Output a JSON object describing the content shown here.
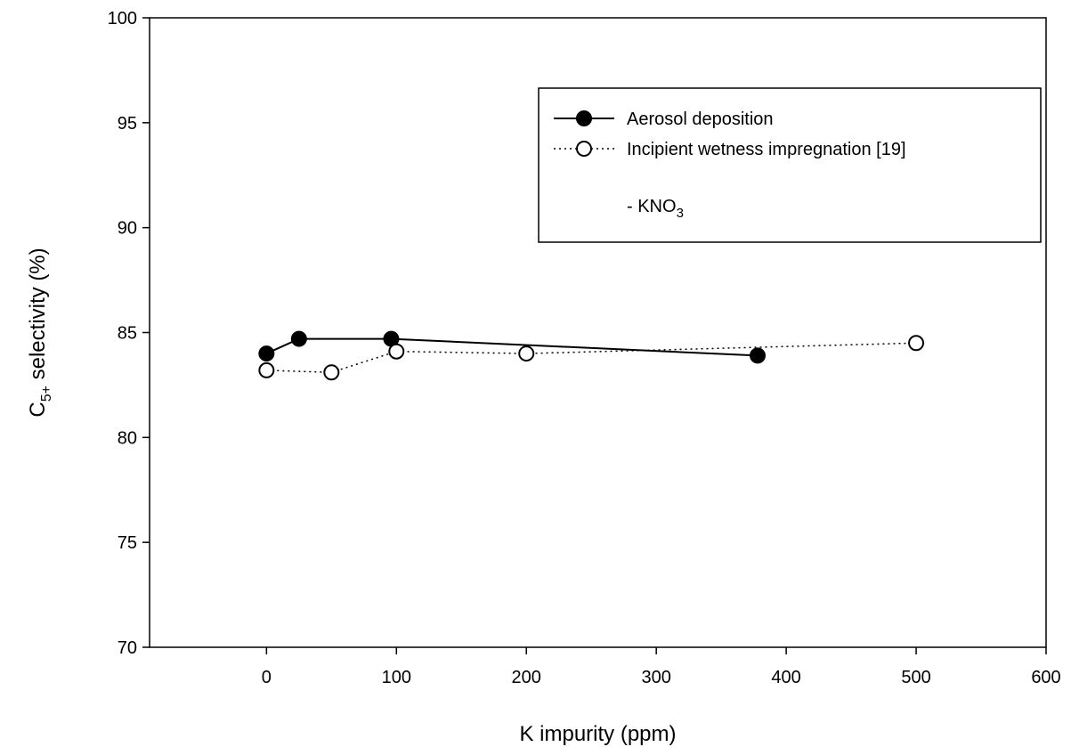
{
  "chart_data": {
    "type": "line",
    "title": "",
    "xlabel": "K impurity (ppm)",
    "ylabel_main": "C",
    "ylabel_sub": "5+",
    "ylabel_rest": " selectivity (%)",
    "xlim": [
      -90,
      600
    ],
    "ylim": [
      70,
      100
    ],
    "xticks": [
      0,
      100,
      200,
      300,
      400,
      500,
      600
    ],
    "yticks": [
      70,
      75,
      80,
      85,
      90,
      95,
      100
    ],
    "grid": false,
    "legend_position": "top-right",
    "legend_note_main": "- KNO",
    "legend_note_sub": "3",
    "series": [
      {
        "name": "Aerosol deposition",
        "style": "solid",
        "marker": "filled-circle",
        "color": "#000000",
        "x": [
          0,
          25,
          96,
          378
        ],
        "y": [
          84.0,
          84.7,
          84.7,
          83.9
        ]
      },
      {
        "name": "Incipient wetness impregnation [19]",
        "style": "dotted",
        "marker": "open-circle",
        "color": "#000000",
        "x": [
          0,
          50,
          100,
          200,
          500
        ],
        "y": [
          83.2,
          83.1,
          84.1,
          84.0,
          84.5
        ]
      }
    ]
  }
}
